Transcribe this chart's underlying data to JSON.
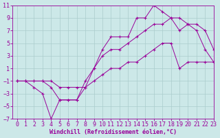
{
  "bg_color": "#cce8e8",
  "grid_color": "#aacccc",
  "line_color": "#990099",
  "marker": "+",
  "xlabel": "Windchill (Refroidissement éolien,°C)",
  "xlim": [
    -0.5,
    23
  ],
  "ylim": [
    -7,
    11
  ],
  "yticks": [
    -7,
    -5,
    -3,
    -1,
    1,
    3,
    5,
    7,
    9,
    11
  ],
  "xticks": [
    0,
    1,
    2,
    3,
    4,
    5,
    6,
    7,
    8,
    9,
    10,
    11,
    12,
    13,
    14,
    15,
    16,
    17,
    18,
    19,
    20,
    21,
    22,
    23
  ],
  "curve1_x": [
    0,
    1,
    2,
    3,
    4,
    5,
    6,
    7,
    8,
    9,
    10,
    11,
    12,
    13,
    14,
    15,
    16,
    17,
    18,
    19,
    20,
    21,
    22,
    23
  ],
  "curve1_y": [
    -1,
    -1,
    -2,
    -3,
    -7,
    -4,
    -4,
    -4,
    -2,
    1,
    4,
    6,
    6,
    6,
    9,
    9,
    11,
    10,
    9,
    9,
    8,
    8,
    7,
    4
  ],
  "curve2_x": [
    0,
    1,
    2,
    3,
    4,
    5,
    6,
    7,
    8,
    9,
    10,
    11,
    12,
    13,
    14,
    15,
    16,
    17,
    18,
    19,
    20,
    21,
    22,
    23
  ],
  "curve2_y": [
    -1,
    -1,
    -1,
    -1,
    -2,
    -4,
    -4,
    -4,
    -1,
    1,
    3,
    4,
    4,
    5,
    6,
    7,
    8,
    8,
    9,
    7,
    8,
    7,
    4,
    2
  ],
  "curve3_x": [
    0,
    1,
    2,
    3,
    4,
    5,
    6,
    7,
    8,
    9,
    10,
    11,
    12,
    13,
    14,
    15,
    16,
    17,
    18,
    19,
    20,
    21,
    22,
    23
  ],
  "curve3_y": [
    -1,
    -1,
    -1,
    -1,
    -1,
    -2,
    -2,
    -2,
    -2,
    -1,
    0,
    1,
    1,
    2,
    2,
    3,
    4,
    5,
    5,
    1,
    2,
    2,
    2,
    2
  ],
  "xlabel_fontsize": 6,
  "tick_fontsize": 6,
  "figsize": [
    3.2,
    2.0
  ],
  "dpi": 100
}
